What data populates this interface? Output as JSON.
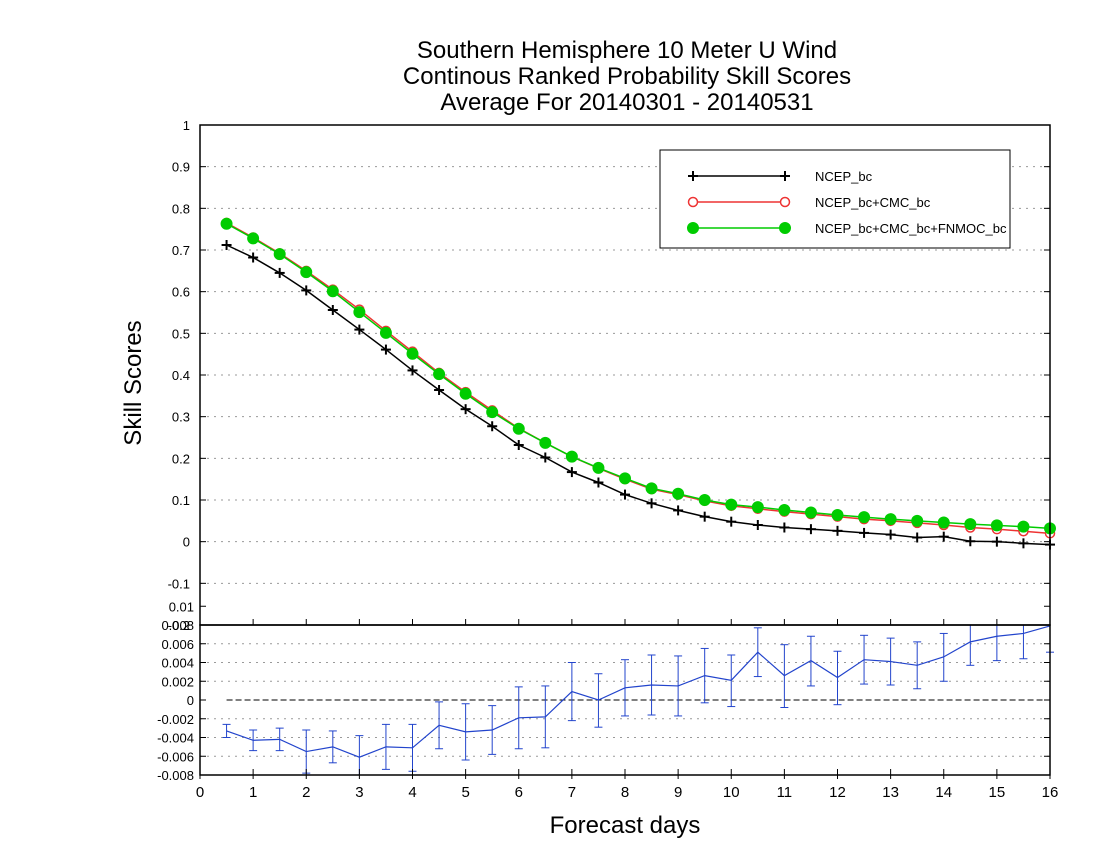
{
  "chart_data": [
    {
      "type": "line",
      "title": [
        "Southern Hemisphere 10 Meter U Wind",
        "Continous Ranked Probability Skill Scores",
        "Average For 20140301 - 20140531"
      ],
      "ylabel": "Skill Scores",
      "ylim": [
        -0.2,
        1
      ],
      "yticks": [
        "-0.2",
        "-0.1",
        "0",
        "0.1",
        "0.2",
        "0.3",
        "0.4",
        "0.5",
        "0.6",
        "0.7",
        "0.8",
        "0.9",
        "1"
      ],
      "grid": true,
      "legend_position": "top-right",
      "x": [
        0.5,
        1,
        1.5,
        2,
        2.5,
        3,
        3.5,
        4,
        4.5,
        5,
        5.5,
        6,
        6.5,
        7,
        7.5,
        8,
        8.5,
        9,
        9.5,
        10,
        10.5,
        11,
        11.5,
        12,
        12.5,
        13,
        13.5,
        14,
        14.5,
        15,
        15.5,
        16
      ],
      "series": [
        {
          "name": "NCEP_bc",
          "color": "#000000",
          "marker": "plus",
          "values": [
            0.712,
            0.682,
            0.645,
            0.603,
            0.556,
            0.509,
            0.461,
            0.411,
            0.364,
            0.318,
            0.277,
            0.232,
            0.202,
            0.167,
            0.142,
            0.113,
            0.092,
            0.075,
            0.06,
            0.048,
            0.04,
            0.034,
            0.03,
            0.026,
            0.021,
            0.017,
            0.01,
            0.012,
            0.001,
            0.0,
            -0.004,
            -0.007
          ]
        },
        {
          "name": "NCEP_bc+CMC_bc",
          "color": "#ee3333",
          "marker": "open-circle",
          "values": [
            0.765,
            0.73,
            0.692,
            0.65,
            0.605,
            0.557,
            0.506,
            0.456,
            0.405,
            0.359,
            0.315,
            0.272,
            0.237,
            0.204,
            0.176,
            0.15,
            0.126,
            0.113,
            0.098,
            0.086,
            0.079,
            0.072,
            0.066,
            0.06,
            0.054,
            0.05,
            0.045,
            0.04,
            0.034,
            0.03,
            0.025,
            0.02
          ]
        },
        {
          "name": "NCEP_bc+CMC_bc+FNMOC_bc",
          "color": "#00cc00",
          "marker": "filled-circle",
          "values": [
            0.763,
            0.728,
            0.69,
            0.647,
            0.601,
            0.551,
            0.501,
            0.451,
            0.402,
            0.355,
            0.311,
            0.271,
            0.237,
            0.204,
            0.177,
            0.152,
            0.128,
            0.115,
            0.1,
            0.089,
            0.083,
            0.076,
            0.07,
            0.064,
            0.059,
            0.054,
            0.05,
            0.046,
            0.042,
            0.039,
            0.036,
            0.032
          ]
        }
      ]
    },
    {
      "type": "line",
      "xlabel": "Forecast days",
      "xlim": [
        0,
        16
      ],
      "xticks": [
        "0",
        "1",
        "2",
        "3",
        "4",
        "5",
        "6",
        "7",
        "8",
        "9",
        "10",
        "11",
        "12",
        "13",
        "14",
        "15",
        "16"
      ],
      "ylim": [
        -0.008,
        0.008
      ],
      "yticks": [
        "-0.008",
        "-0.006",
        "-0.004",
        "-0.002",
        "0",
        "0.002",
        "0.004",
        "0.006",
        "0.008",
        "0.01"
      ],
      "grid": true,
      "series": [
        {
          "color": "#2244cc",
          "x": [
            0.5,
            1,
            1.5,
            2,
            2.5,
            3,
            3.5,
            4,
            4.5,
            5,
            5.5,
            6,
            6.5,
            7,
            7.5,
            8,
            8.5,
            9,
            9.5,
            10,
            10.5,
            11,
            11.5,
            12,
            12.5,
            13,
            13.5,
            14,
            14.5,
            15,
            15.5,
            16
          ],
          "values": [
            -0.0033,
            -0.0043,
            -0.0042,
            -0.0055,
            -0.005,
            -0.0061,
            -0.005,
            -0.0051,
            -0.0027,
            -0.0034,
            -0.0032,
            -0.0019,
            -0.0018,
            0.0009,
            0.0,
            0.0013,
            0.0016,
            0.0015,
            0.0026,
            0.0021,
            0.0051,
            0.0026,
            0.0042,
            0.0024,
            0.0043,
            0.0041,
            0.0037,
            0.0046,
            0.0062,
            0.0068,
            0.0071,
            0.0079
          ],
          "err_low": [
            -0.004,
            -0.0054,
            -0.0054,
            -0.0078,
            -0.0067,
            -0.0084,
            -0.0074,
            -0.0076,
            -0.0052,
            -0.0064,
            -0.0058,
            -0.0052,
            -0.0051,
            -0.0022,
            -0.0029,
            -0.0017,
            -0.0016,
            -0.0017,
            -0.0003,
            -0.0007,
            0.0025,
            -0.0008,
            0.0015,
            -0.0005,
            0.0017,
            0.0016,
            0.0012,
            0.002,
            0.0037,
            0.0042,
            0.0044,
            0.0051
          ],
          "err_high": [
            -0.0026,
            -0.0032,
            -0.003,
            -0.0032,
            -0.0033,
            -0.0038,
            -0.0026,
            -0.0026,
            -0.0002,
            -0.0004,
            -0.0006,
            0.0014,
            0.0015,
            0.004,
            0.0028,
            0.0043,
            0.0048,
            0.0047,
            0.0055,
            0.0048,
            0.0077,
            0.0059,
            0.0068,
            0.0052,
            0.0069,
            0.0066,
            0.0062,
            0.0071,
            0.0087,
            0.0093,
            0.0097,
            0.0107
          ]
        }
      ]
    }
  ]
}
